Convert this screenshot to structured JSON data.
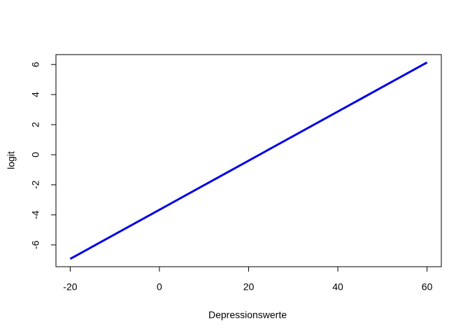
{
  "chart_data": {
    "type": "line",
    "x": [
      -20,
      60
    ],
    "series": [
      {
        "name": "logit",
        "color": "#0000e6",
        "values": [
          -6.93,
          6.14
        ]
      }
    ],
    "xlabel": "Depressionswerte",
    "ylabel": "logit",
    "xlim": [
      -23.2,
      63.2
    ],
    "ylim": [
      -7.45,
      6.66
    ],
    "xticks": [
      -20,
      0,
      20,
      40,
      60
    ],
    "yticks": [
      -6,
      -4,
      -2,
      0,
      2,
      4,
      6
    ]
  }
}
